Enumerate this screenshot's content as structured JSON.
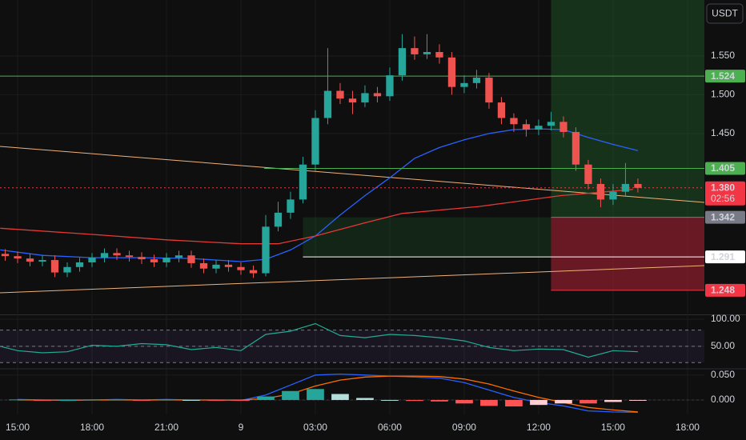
{
  "header": {
    "currency": "USDT"
  },
  "chart_data": [
    {
      "type": "candlestick",
      "up_color": "#26a69a",
      "down_color": "#ef5350",
      "xlim": [
        -0.71,
        27.68
      ],
      "xticks": [
        {
          "value": 0,
          "label": "15:00"
        },
        {
          "value": 3,
          "label": "18:00"
        },
        {
          "value": 6,
          "label": "21:00"
        },
        {
          "value": 9,
          "label": "9"
        },
        {
          "value": 12,
          "label": "03:00"
        },
        {
          "value": 15,
          "label": "06:00"
        },
        {
          "value": 18,
          "label": "09:00"
        },
        {
          "value": 21,
          "label": "12:00"
        },
        {
          "value": 24,
          "label": "15:00"
        },
        {
          "value": 27,
          "label": "18:00"
        }
      ],
      "ylim": [
        1.218,
        1.622
      ],
      "yticks": [
        {
          "value": 1.55,
          "label": "1.550"
        },
        {
          "value": 1.5,
          "label": "1.500"
        },
        {
          "value": 1.45,
          "label": "1.450"
        }
      ],
      "x": [
        -0.5,
        0,
        0.5,
        1,
        1.5,
        2,
        2.5,
        3,
        3.5,
        4,
        4.5,
        5,
        5.5,
        6,
        6.5,
        7,
        7.5,
        8,
        8.5,
        9,
        9.5,
        10,
        10.5,
        11,
        11.5,
        12,
        12.5,
        13,
        13.5,
        14,
        14.5,
        15,
        15.5,
        16,
        16.5,
        17,
        17.5,
        18,
        18.5,
        19,
        19.5,
        20,
        20.5,
        21,
        21.5,
        22,
        22.5,
        23,
        23.5,
        24,
        24.5,
        25
      ],
      "open": [
        1.295,
        1.292,
        1.289,
        1.285,
        1.287,
        1.271,
        1.278,
        1.284,
        1.29,
        1.296,
        1.293,
        1.291,
        1.288,
        1.284,
        1.29,
        1.293,
        1.283,
        1.276,
        1.281,
        1.278,
        1.274,
        1.27,
        1.33,
        1.348,
        1.365,
        1.41,
        1.47,
        1.505,
        1.495,
        1.49,
        1.502,
        1.498,
        1.525,
        1.56,
        1.552,
        1.555,
        1.548,
        1.51,
        1.515,
        1.522,
        1.49,
        1.47,
        1.462,
        1.455,
        1.46,
        1.465,
        1.452,
        1.41,
        1.385,
        1.365,
        1.375,
        1.385
      ],
      "high": [
        1.301,
        1.298,
        1.295,
        1.293,
        1.293,
        1.284,
        1.29,
        1.296,
        1.302,
        1.302,
        1.299,
        1.297,
        1.294,
        1.296,
        1.299,
        1.299,
        1.289,
        1.287,
        1.287,
        1.284,
        1.28,
        1.345,
        1.362,
        1.375,
        1.42,
        1.48,
        1.56,
        1.515,
        1.505,
        1.512,
        1.51,
        1.535,
        1.578,
        1.575,
        1.578,
        1.565,
        1.555,
        1.525,
        1.532,
        1.528,
        1.497,
        1.476,
        1.468,
        1.468,
        1.478,
        1.472,
        1.458,
        1.416,
        1.392,
        1.385,
        1.412,
        1.392
      ],
      "low": [
        1.286,
        1.283,
        1.279,
        1.279,
        1.265,
        1.265,
        1.272,
        1.278,
        1.284,
        1.287,
        1.285,
        1.282,
        1.278,
        1.278,
        1.284,
        1.277,
        1.27,
        1.27,
        1.272,
        1.268,
        1.264,
        1.266,
        1.324,
        1.34,
        1.36,
        1.402,
        1.462,
        1.488,
        1.475,
        1.484,
        1.49,
        1.492,
        1.518,
        1.545,
        1.546,
        1.54,
        1.5,
        1.502,
        1.508,
        1.482,
        1.462,
        1.452,
        1.446,
        1.448,
        1.454,
        1.445,
        1.402,
        1.378,
        1.355,
        1.358,
        1.37,
        1.374
      ],
      "close": [
        1.292,
        1.289,
        1.285,
        1.287,
        1.271,
        1.278,
        1.284,
        1.29,
        1.296,
        1.293,
        1.291,
        1.288,
        1.284,
        1.29,
        1.293,
        1.283,
        1.276,
        1.281,
        1.278,
        1.274,
        1.27,
        1.33,
        1.348,
        1.365,
        1.41,
        1.47,
        1.505,
        1.495,
        1.49,
        1.502,
        1.498,
        1.525,
        1.56,
        1.552,
        1.555,
        1.548,
        1.51,
        1.515,
        1.522,
        1.49,
        1.47,
        1.462,
        1.455,
        1.46,
        1.465,
        1.452,
        1.41,
        1.385,
        1.365,
        1.375,
        1.385,
        1.38
      ],
      "series": [
        {
          "color": "#2962ff",
          "x": [
            -0.7,
            1,
            3,
            5,
            7,
            9,
            10,
            11,
            12,
            13,
            14,
            15,
            16,
            17,
            18,
            19,
            20,
            21,
            22,
            23,
            24,
            25
          ],
          "values": [
            1.3,
            1.293,
            1.29,
            1.29,
            1.289,
            1.285,
            1.288,
            1.3,
            1.318,
            1.345,
            1.37,
            1.393,
            1.418,
            1.432,
            1.442,
            1.45,
            1.455,
            1.456,
            1.455,
            1.445,
            1.436,
            1.428
          ]
        },
        {
          "color": "#e53935",
          "x": [
            -0.7,
            3,
            6,
            9,
            10.5,
            12,
            14,
            15.5,
            18.6,
            21.9,
            24.8
          ],
          "values": [
            1.328,
            1.32,
            1.313,
            1.308,
            1.308,
            1.318,
            1.335,
            1.347,
            1.356,
            1.37,
            1.378
          ]
        }
      ],
      "price_lines": [
        {
          "value": 1.524,
          "color": "#4caf50",
          "text_color": "#000000",
          "x_start": -0.71
        },
        {
          "value": 1.405,
          "color": "#4caf50",
          "text_color": "#000000",
          "x_start": 9.94
        },
        {
          "value": 1.38,
          "label": "1.380",
          "color": "#f23645",
          "text_color": "#ffffff",
          "x_start": -0.71,
          "dotted": true,
          "countdown": "02:56"
        },
        {
          "value": 1.342,
          "color": "#787b86",
          "text_color": "#ffffff",
          "x_start": 21.5
        },
        {
          "value": 1.291,
          "color": "#ffffff",
          "text_color": "#000000",
          "x_start": 11.5
        },
        {
          "value": 1.248,
          "color": "#f23645",
          "text_color": "#ffffff",
          "x_start": 21.5
        }
      ]
    },
    {
      "type": "line",
      "xlim": [
        -0.71,
        27.68
      ],
      "ylim": [
        10,
        106
      ],
      "yticks": [
        {
          "value": 100,
          "label": "100.00"
        },
        {
          "value": 50,
          "label": "50.00"
        }
      ],
      "levels": [
        80,
        50,
        20
      ],
      "color": "#22ab94",
      "x": [
        -0.7,
        0,
        1,
        2,
        3,
        4,
        5,
        6,
        7,
        8,
        9,
        10,
        11,
        12,
        13,
        14,
        15,
        16,
        17,
        18,
        19,
        20,
        21,
        22,
        23,
        24,
        25
      ],
      "values": [
        50,
        42,
        38,
        40,
        52,
        50,
        55,
        53,
        44,
        48,
        42,
        72,
        78,
        92,
        70,
        66,
        72,
        70,
        66,
        60,
        48,
        42,
        45,
        44,
        30,
        42,
        40
      ]
    },
    {
      "type": "bar",
      "xlim": [
        -0.71,
        27.68
      ],
      "ylim": [
        -0.029,
        0.061
      ],
      "yticks": [
        {
          "value": 0.05,
          "label": "0.050"
        },
        {
          "value": 0,
          "label": "0.000"
        }
      ],
      "x": [
        0,
        1,
        2,
        3,
        4,
        5,
        6,
        7,
        8,
        9,
        10,
        11,
        12,
        13,
        14,
        15,
        16,
        17,
        18,
        19,
        20,
        21,
        22,
        23,
        24,
        25
      ],
      "values": [
        0.001,
        -0.001,
        0,
        0.001,
        0.001,
        -0.001,
        0.001,
        0,
        -0.001,
        -0.001,
        0.007,
        0.018,
        0.022,
        0.012,
        0.004,
        0,
        -0.002,
        -0.003,
        -0.007,
        -0.012,
        -0.013,
        -0.01,
        -0.007,
        -0.007,
        -0.004,
        -0.001
      ],
      "series": [
        {
          "color": "#2962ff",
          "x": [
            0,
            1,
            2,
            3,
            4,
            5,
            6,
            7,
            8,
            9,
            10,
            11,
            12,
            13,
            14,
            15,
            16,
            17,
            18,
            19,
            20,
            21,
            22,
            23,
            24,
            25
          ],
          "values": [
            0.001,
            0,
            -0.001,
            0,
            0.001,
            0,
            0.001,
            0,
            0,
            -0.001,
            0.01,
            0.03,
            0.05,
            0.052,
            0.05,
            0.048,
            0.046,
            0.044,
            0.035,
            0.02,
            0.005,
            -0.005,
            -0.012,
            -0.022,
            -0.024,
            -0.025
          ]
        },
        {
          "color": "#ff6d00",
          "x": [
            0,
            1,
            2,
            3,
            4,
            5,
            6,
            7,
            8,
            9,
            10,
            11,
            12,
            13,
            14,
            15,
            16,
            17,
            18,
            19,
            20,
            21,
            22,
            23,
            24,
            25
          ],
          "values": [
            0,
            0,
            0,
            0,
            0,
            0,
            0,
            0,
            0,
            0,
            0.003,
            0.012,
            0.028,
            0.04,
            0.046,
            0.048,
            0.048,
            0.047,
            0.042,
            0.032,
            0.018,
            0.005,
            -0.005,
            -0.015,
            -0.02,
            -0.024
          ]
        }
      ]
    }
  ]
}
